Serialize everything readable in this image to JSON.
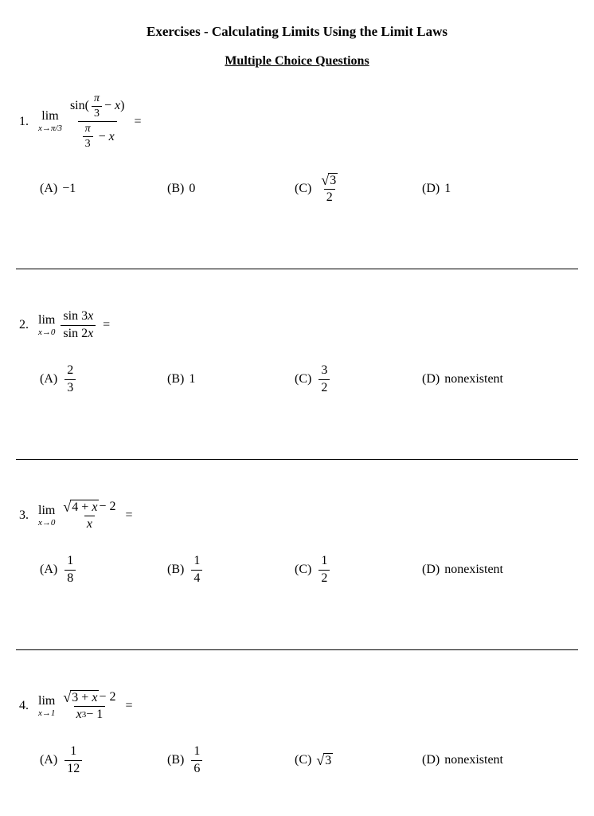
{
  "title": "Exercises - Calculating Limits Using the Limit Laws",
  "subtitle": "Multiple Choice Questions",
  "questions": [
    {
      "number": "1.",
      "limit_sub": "x→π/3",
      "choices": {
        "A": "−1",
        "B": "0",
        "C_num": "3",
        "C_den": "2",
        "D": "1"
      }
    },
    {
      "number": "2.",
      "limit_sub": "x→0",
      "expr_num": "sin 3x",
      "expr_den": "sin 2x",
      "choices": {
        "A_num": "2",
        "A_den": "3",
        "B": "1",
        "C_num": "3",
        "C_den": "2",
        "D": "nonexistent"
      }
    },
    {
      "number": "3.",
      "limit_sub": "x→0",
      "sqrt_body": "4 + x",
      "after_sqrt": " − 2",
      "expr_den": "x",
      "choices": {
        "A_num": "1",
        "A_den": "8",
        "B_num": "1",
        "B_den": "4",
        "C_num": "1",
        "C_den": "2",
        "D": "nonexistent"
      }
    },
    {
      "number": "4.",
      "limit_sub": "x→1",
      "sqrt_body": "3 + x",
      "after_sqrt": " − 2",
      "expr_den_html": "x³ − 1",
      "choices": {
        "A_num": "1",
        "A_den": "12",
        "B_num": "1",
        "B_den": "6",
        "C_sqrt": "3",
        "D": "nonexistent"
      }
    }
  ],
  "labels": {
    "A": "(A)",
    "B": "(B)",
    "C": "(C)",
    "D": "(D)",
    "lim": "lim",
    "equals": "="
  },
  "style": {
    "text_color": "#000000",
    "bg_color": "#ffffff",
    "title_fontsize": 17,
    "body_fontsize": 16,
    "sub_fontsize": 11
  }
}
